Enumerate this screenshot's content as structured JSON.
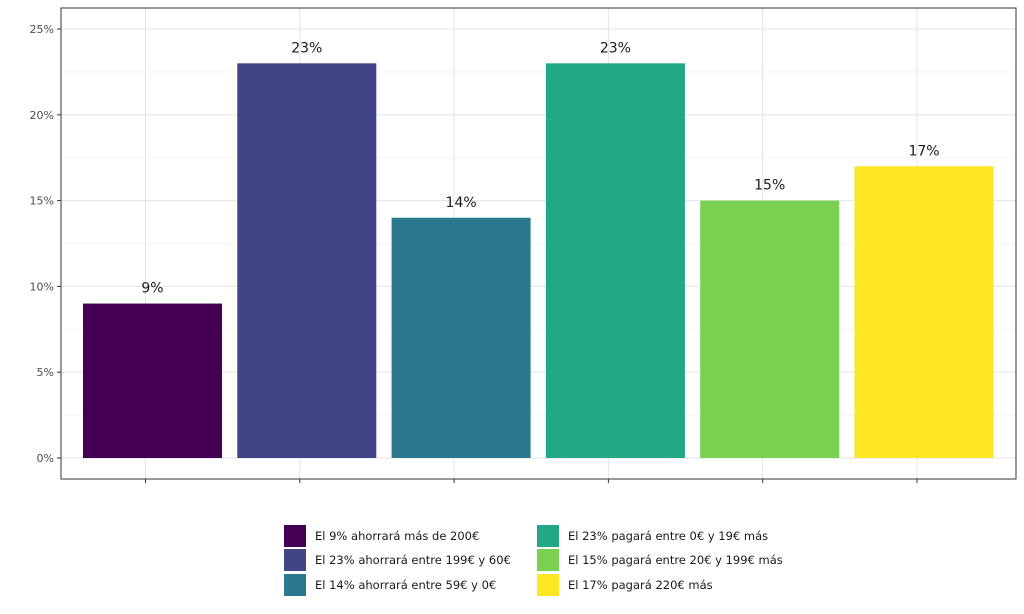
{
  "chart_data": {
    "type": "bar",
    "categories": [
      "El 9% ahorrará más de 200€",
      "El 23% ahorrará entre 199€ y 60€",
      "El 14% ahorrará entre 59€ y 0€",
      "El 23% pagará entre 0€ y 19€ más",
      "El 15% pagará entre 20€ y 199€ más",
      "El 17% pagará 220€ más"
    ],
    "values": [
      9,
      23,
      14,
      23,
      15,
      17
    ],
    "data_labels": [
      "9%",
      "23%",
      "14%",
      "23%",
      "15%",
      "17%"
    ],
    "colors": [
      "#440154",
      "#414487",
      "#2a788e",
      "#22a884",
      "#7ad151",
      "#fde725"
    ],
    "title": "",
    "xlabel": "",
    "ylabel": "",
    "ylim": [
      0,
      25
    ],
    "yticks": [
      0,
      5,
      10,
      15,
      20,
      25
    ],
    "ytick_labels": [
      "0%",
      "5%",
      "10%",
      "15%",
      "20%",
      "25%"
    ],
    "grid": true,
    "legend": {
      "position": "bottom",
      "columns": 2
    }
  }
}
